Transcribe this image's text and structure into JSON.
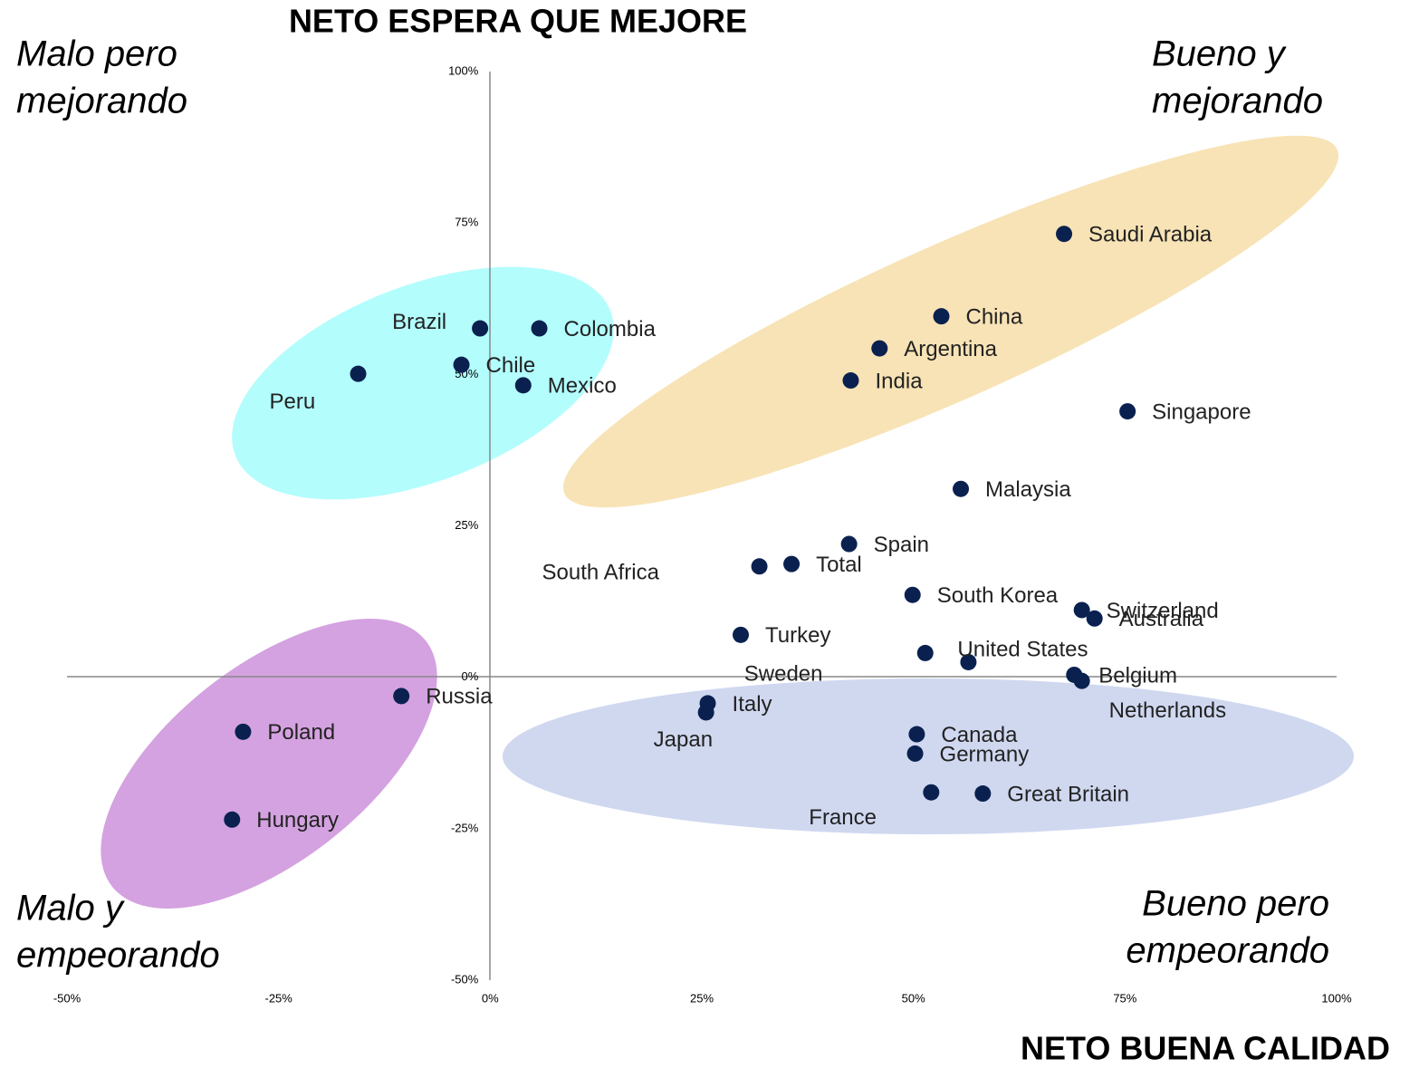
{
  "chart_data": {
    "type": "scatter",
    "title": "NETO ESPERA QUE MEJORE",
    "x_label": "NETO BUENA CALIDAD",
    "annotations": [
      {
        "lines": [
          "Malo pero",
          "mejorando"
        ]
      },
      {
        "lines": [
          "Bueno y",
          "mejorando"
        ]
      },
      {
        "lines": [
          "Malo y",
          "empeorando"
        ]
      },
      {
        "lines": [
          "Bueno pero",
          "empeorando"
        ]
      }
    ],
    "color": "#0a2150",
    "labels": [
      "Saudi Arabia",
      "China",
      "Argentina",
      "India",
      "Singapore",
      "Malaysia",
      "Spain",
      "Total",
      "South Africa",
      "South Korea",
      "Switzerland",
      "Australia",
      "Turkey",
      "Sweden",
      "United States",
      "Belgium",
      "Netherlands",
      "Italy",
      "Japan",
      "Canada",
      "Germany",
      "France",
      "Great Britain",
      "Russia",
      "Poland",
      "Hungary",
      "Peru",
      "Chile",
      "Brazil",
      "Colombia",
      "Mexico"
    ],
    "x": [
      67.8,
      53.3,
      46.0,
      42.6,
      75.3,
      55.6,
      42.4,
      35.6,
      31.8,
      49.9,
      69.9,
      71.4,
      29.6,
      51.4,
      56.5,
      69.0,
      69.9,
      25.7,
      25.5,
      50.4,
      50.2,
      52.1,
      58.2,
      -10.5,
      -29.2,
      -30.5,
      -15.6,
      -3.4,
      -1.2,
      5.8,
      3.9
    ],
    "values": [
      73.2,
      59.6,
      54.3,
      49.0,
      43.9,
      31.1,
      22.0,
      18.7,
      18.3,
      13.6,
      11.1,
      9.7,
      7.0,
      4.0,
      2.5,
      0.4,
      -0.6,
      -4.3,
      -5.8,
      -9.4,
      -12.6,
      -19.0,
      -19.2,
      -3.1,
      -9.0,
      -23.5,
      50.1,
      51.6,
      57.6,
      57.6,
      48.2
    ],
    "xlim": [
      -50,
      100
    ],
    "ylim": [
      -50,
      100
    ],
    "xticks": [
      {
        "value": -50,
        "label": "-50%"
      },
      {
        "value": -25,
        "label": "-25%"
      },
      {
        "value": 0,
        "label": "0%"
      },
      {
        "value": 25,
        "label": "25%"
      },
      {
        "value": 50,
        "label": "50%"
      },
      {
        "value": 75,
        "label": "75%"
      },
      {
        "value": 100,
        "label": "100%"
      }
    ],
    "yticks": [
      {
        "value": -50,
        "label": "-50%"
      },
      {
        "value": -25,
        "label": "-25%"
      },
      {
        "value": 0,
        "label": "0%"
      },
      {
        "value": 25,
        "label": "25%"
      },
      {
        "value": 50,
        "label": "50%"
      },
      {
        "value": 75,
        "label": "75%"
      },
      {
        "value": 100,
        "label": "100%"
      }
    ]
  }
}
